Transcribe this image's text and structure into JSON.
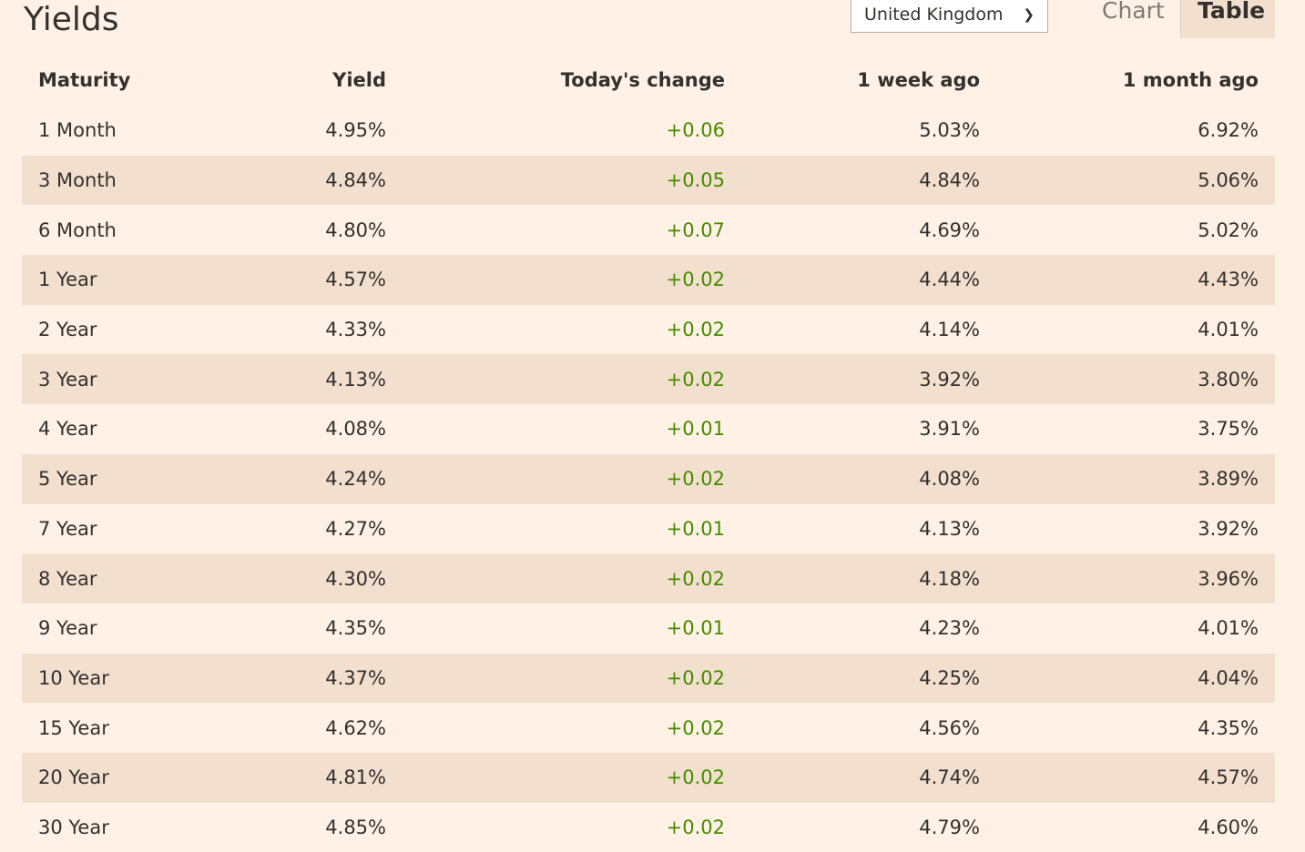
{
  "title": "Yields",
  "country_select": {
    "value": "United Kingdom"
  },
  "tabs": [
    {
      "label": "Chart",
      "active": false
    },
    {
      "label": "Table",
      "active": true
    }
  ],
  "colors": {
    "background": "#fff1e5",
    "stripe": "#f2dfce",
    "positive": "#458b00"
  },
  "table": {
    "headers": [
      "Maturity",
      "Yield",
      "Today's change",
      "1 week ago",
      "1 month ago"
    ],
    "rows": [
      [
        "1 Month",
        "4.95%",
        "+0.06",
        "5.03%",
        "6.92%"
      ],
      [
        "3 Month",
        "4.84%",
        "+0.05",
        "4.84%",
        "5.06%"
      ],
      [
        "6 Month",
        "4.80%",
        "+0.07",
        "4.69%",
        "5.02%"
      ],
      [
        "1 Year",
        "4.57%",
        "+0.02",
        "4.44%",
        "4.43%"
      ],
      [
        "2 Year",
        "4.33%",
        "+0.02",
        "4.14%",
        "4.01%"
      ],
      [
        "3 Year",
        "4.13%",
        "+0.02",
        "3.92%",
        "3.80%"
      ],
      [
        "4 Year",
        "4.08%",
        "+0.01",
        "3.91%",
        "3.75%"
      ],
      [
        "5 Year",
        "4.24%",
        "+0.02",
        "4.08%",
        "3.89%"
      ],
      [
        "7 Year",
        "4.27%",
        "+0.01",
        "4.13%",
        "3.92%"
      ],
      [
        "8 Year",
        "4.30%",
        "+0.02",
        "4.18%",
        "3.96%"
      ],
      [
        "9 Year",
        "4.35%",
        "+0.01",
        "4.23%",
        "4.01%"
      ],
      [
        "10 Year",
        "4.37%",
        "+0.02",
        "4.25%",
        "4.04%"
      ],
      [
        "15 Year",
        "4.62%",
        "+0.02",
        "4.56%",
        "4.35%"
      ],
      [
        "20 Year",
        "4.81%",
        "+0.02",
        "4.74%",
        "4.57%"
      ],
      [
        "30 Year",
        "4.85%",
        "+0.02",
        "4.79%",
        "4.60%"
      ]
    ]
  }
}
